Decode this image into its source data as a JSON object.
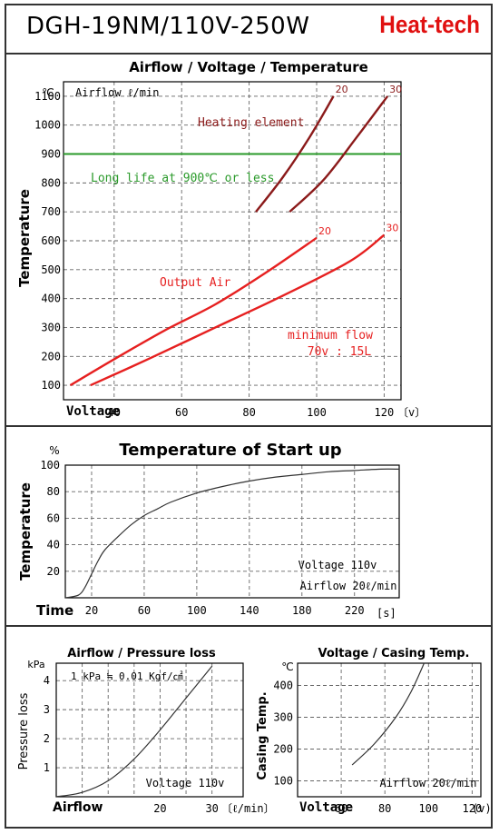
{
  "header": {
    "model": "DGH-19NM/110V-250W",
    "brand": "Heat-tech",
    "brand_color": "#e01010"
  },
  "chart_data": [
    {
      "type": "line",
      "title": "Airflow / Voltage / Temperature",
      "xlabel": "Voltage",
      "ylabel": "Temperature",
      "x_unit": "〔v〕",
      "y_unit": "℃",
      "corner_label": "Airflow ℓ/min",
      "x_ticks": [
        "40",
        "60",
        "80",
        "100",
        "120"
      ],
      "y_ticks": [
        "100",
        "200",
        "300",
        "400",
        "500",
        "600",
        "700",
        "800",
        "900",
        "1000",
        "1100"
      ],
      "xlim": [
        25,
        125
      ],
      "ylim": [
        50,
        1150
      ],
      "grid": true,
      "reference_line": {
        "y": 900,
        "label": "Long life at 900℃ or less",
        "color": "#2a9a2a"
      },
      "groups": [
        {
          "label": "Heating element",
          "color": "#8b1a1a",
          "series": [
            {
              "name": "20",
              "x": [
                82,
                90,
                98,
                105
              ],
              "y": [
                700,
                820,
                960,
                1100
              ]
            },
            {
              "name": "30",
              "x": [
                92,
                102,
                112,
                121
              ],
              "y": [
                700,
                810,
                960,
                1100
              ]
            }
          ]
        },
        {
          "label": "Output Air",
          "color": "#e62020",
          "series": [
            {
              "name": "20",
              "x": [
                27,
                40,
                55,
                70,
                85,
                100
              ],
              "y": [
                100,
                190,
                290,
                380,
                490,
                610
              ]
            },
            {
              "name": "30",
              "x": [
                33,
                50,
                70,
                90,
                110,
                120
              ],
              "y": [
                100,
                190,
                300,
                410,
                530,
                620
              ]
            }
          ]
        }
      ],
      "note_lines": [
        "minimum flow",
        "70v : 15L"
      ]
    },
    {
      "type": "line",
      "title": "Temperature of Start up",
      "xlabel": "Time",
      "ylabel": "Temperature",
      "x_unit": "[s]",
      "y_unit": "%",
      "x_ticks": [
        "20",
        "60",
        "100",
        "140",
        "180",
        "220"
      ],
      "y_ticks": [
        "20",
        "40",
        "60",
        "80",
        "100"
      ],
      "xlim": [
        0,
        254
      ],
      "ylim": [
        0,
        100
      ],
      "grid": true,
      "series": [
        {
          "name": "",
          "x": [
            0,
            10,
            15,
            20,
            25,
            30,
            40,
            50,
            60,
            70,
            80,
            100,
            120,
            140,
            160,
            180,
            200,
            220,
            240,
            254
          ],
          "y": [
            0,
            2,
            8,
            18,
            28,
            36,
            46,
            55,
            62,
            67,
            72,
            79,
            84,
            88,
            91,
            93,
            95,
            96,
            97,
            97
          ]
        }
      ],
      "note_lines": [
        "Voltage 110v",
        "Airflow 20ℓ/min"
      ]
    },
    {
      "type": "line",
      "title": "Airflow / Pressure loss",
      "xlabel": "Airflow",
      "ylabel": "Pressure loss",
      "x_unit": "〔ℓ/min〕",
      "y_unit": "kPa",
      "corner_label": "1 kPa ≒ 0.01 Kgf/㎠",
      "x_ticks": [
        "20",
        "30"
      ],
      "y_ticks": [
        "1",
        "2",
        "3",
        "4"
      ],
      "xlim": [
        0,
        36
      ],
      "ylim": [
        0,
        4.6
      ],
      "grid": true,
      "series": [
        {
          "name": "",
          "x": [
            0,
            5,
            10,
            15,
            20,
            25,
            30
          ],
          "y": [
            0,
            0.15,
            0.55,
            1.3,
            2.3,
            3.4,
            4.5
          ]
        }
      ],
      "note_lines": [
        "Voltage 110v"
      ]
    },
    {
      "type": "line",
      "title": "Voltage / Casing Temp.",
      "xlabel": "Voltage",
      "ylabel": "Casing Temp.",
      "x_unit": "(v)",
      "y_unit": "℃",
      "x_ticks": [
        "60",
        "80",
        "100",
        "120"
      ],
      "y_ticks": [
        "100",
        "200",
        "300",
        "400"
      ],
      "xlim": [
        40,
        124
      ],
      "ylim": [
        50,
        470
      ],
      "grid": true,
      "series": [
        {
          "name": "",
          "x": [
            65,
            75,
            85,
            92,
            98
          ],
          "y": [
            150,
            215,
            300,
            380,
            470
          ]
        }
      ],
      "note_lines": [
        "Airflow 20ℓ/min"
      ]
    }
  ]
}
